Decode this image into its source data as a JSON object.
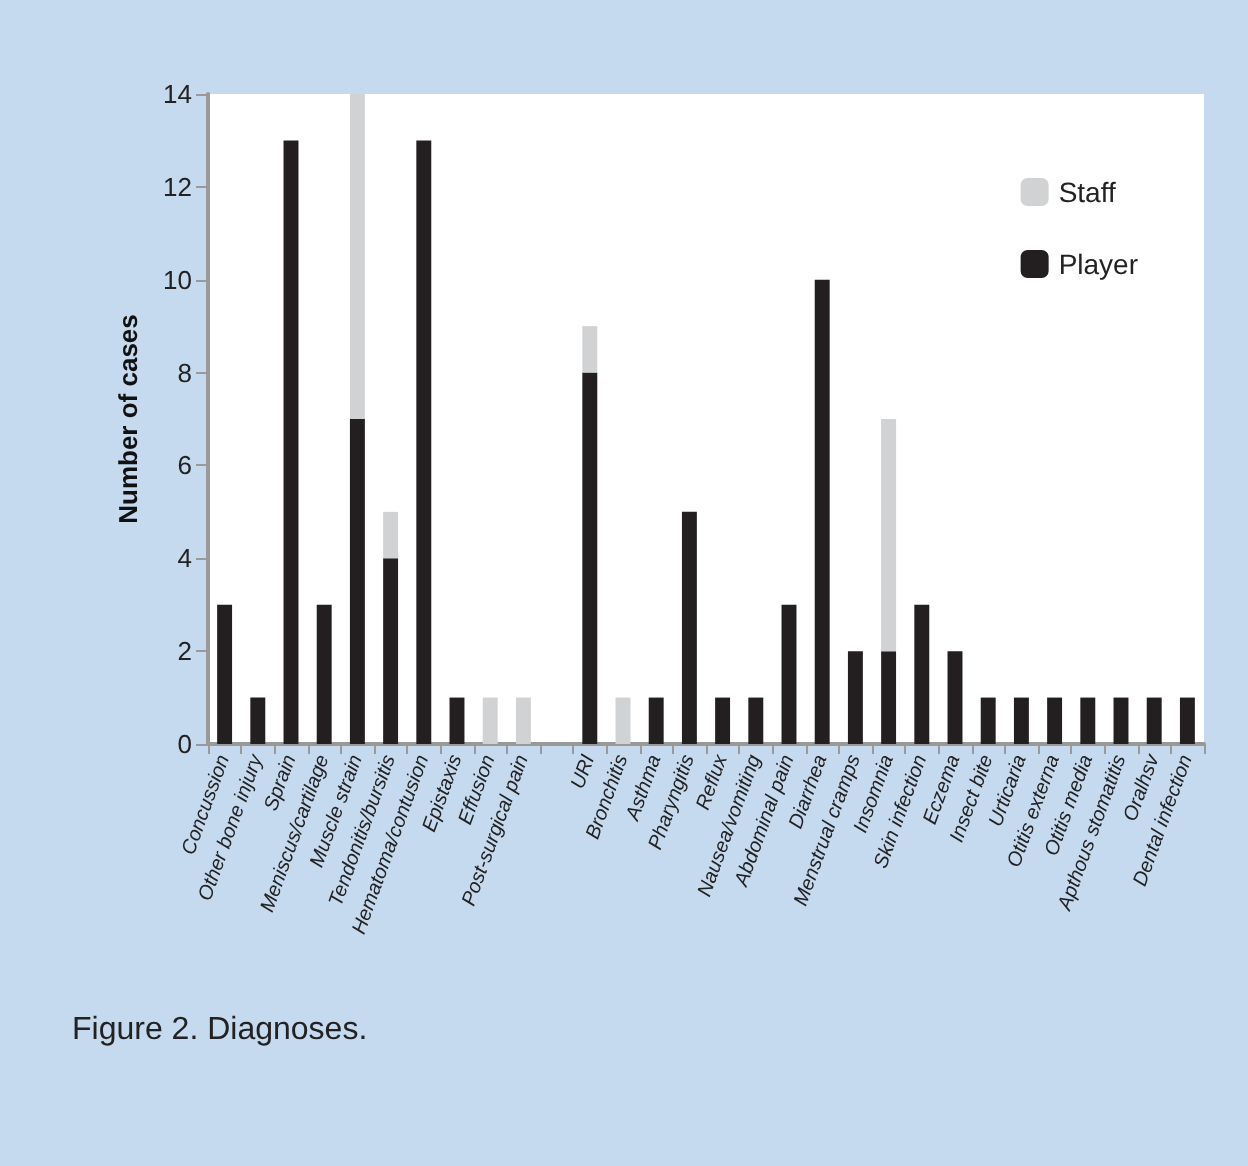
{
  "chart_data": {
    "type": "bar",
    "stacked": true,
    "ylabel": "Number of cases",
    "categories": [
      "Concussion",
      "Other bone injury",
      "Sprain",
      "Meniscus/cartilage",
      "Muscle strain",
      "Tendonitis/bursitis",
      "Hematoma/contusion",
      "Epistaxis",
      "Effusion",
      "Post-surgical pain",
      null,
      "URI",
      "Bronchitis",
      "Asthma",
      "Pharyngitis",
      "Reflux",
      "Nausea/vomiting",
      "Abdominal pain",
      "Diarrhea",
      "Menstrual cramps",
      "Insomnia",
      "Skin infection",
      "Eczema",
      "Insect bite",
      "Urticaria",
      "Otitis externa",
      "Otitis media",
      "Apthous stomatitis",
      "Oralhsv",
      "Dental infection"
    ],
    "series": [
      {
        "name": "Player",
        "color": "#231f20",
        "values": [
          3,
          1,
          13,
          3,
          7,
          4,
          13,
          1,
          0,
          0,
          null,
          8,
          0,
          1,
          5,
          1,
          1,
          3,
          10,
          2,
          2,
          3,
          2,
          1,
          1,
          1,
          1,
          1,
          1,
          1
        ]
      },
      {
        "name": "Staff",
        "color": "#d1d2d4",
        "values": [
          0,
          0,
          0,
          0,
          7,
          1,
          0,
          0,
          1,
          1,
          null,
          1,
          1,
          0,
          0,
          0,
          0,
          0,
          0,
          0,
          5,
          0,
          0,
          0,
          0,
          0,
          0,
          0,
          0,
          0
        ]
      }
    ],
    "ylim": [
      0,
      14
    ],
    "yticks": [
      0,
      2,
      4,
      6,
      8,
      10,
      12,
      14
    ],
    "grid": false,
    "legend": "top right",
    "annotations": [
      "Figure 2. Diagnoses."
    ]
  }
}
